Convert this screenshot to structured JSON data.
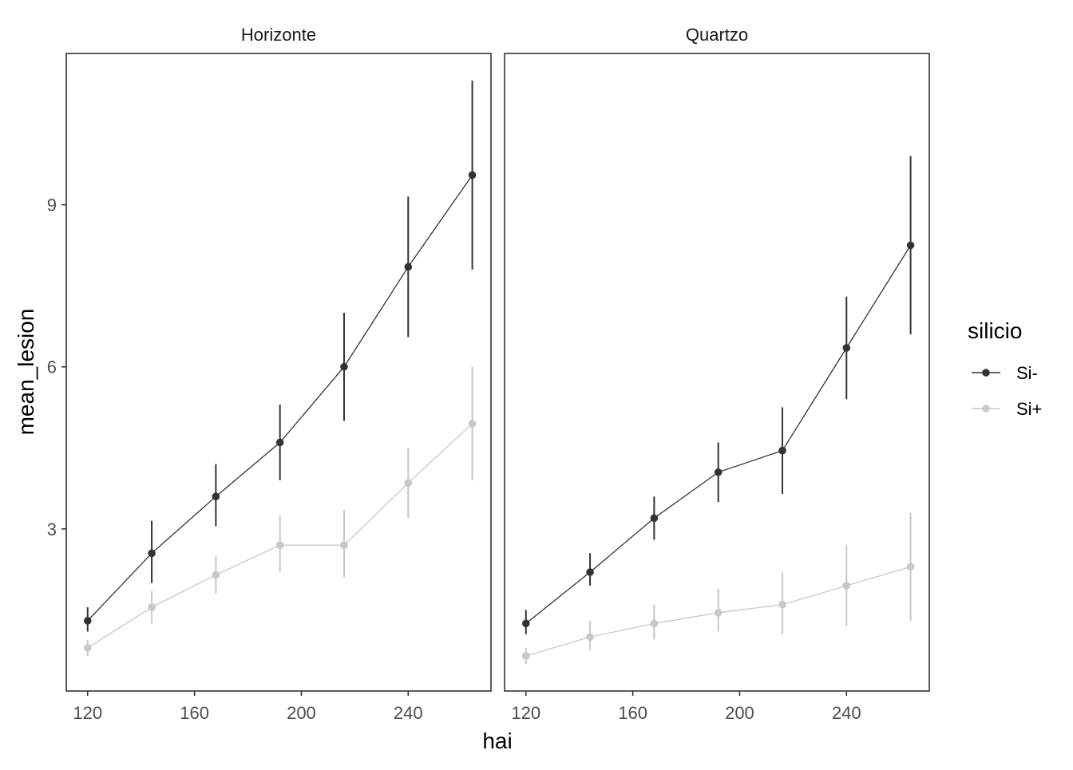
{
  "chart_data": {
    "type": "line",
    "xlabel": "hai",
    "ylabel": "mean_lesion",
    "xlim": [
      112,
      271
    ],
    "ylim": [
      0,
      11.8
    ],
    "x_ticks": [
      120,
      160,
      200,
      240
    ],
    "y_ticks": [
      3,
      6,
      9
    ],
    "grid": false,
    "legend": {
      "title": "silicio",
      "position": "right",
      "entries": [
        {
          "label": "Si-",
          "color": "#333333"
        },
        {
          "label": "Si+",
          "color": "#c8c8c8"
        }
      ]
    },
    "panels": [
      {
        "title": "Horizonte",
        "x": [
          120,
          144,
          168,
          192,
          216,
          240,
          264
        ],
        "series": [
          {
            "name": "Si-",
            "color": "#333333",
            "values": [
              1.3,
              2.55,
              3.6,
              4.6,
              6.0,
              7.85,
              9.55
            ],
            "lower": [
              1.1,
              2.0,
              3.05,
              3.9,
              5.0,
              6.55,
              7.8
            ],
            "upper": [
              1.55,
              3.15,
              4.2,
              5.3,
              7.0,
              9.15,
              11.3
            ]
          },
          {
            "name": "Si+",
            "color": "#c8c8c8",
            "values": [
              0.8,
              1.55,
              2.15,
              2.7,
              2.7,
              3.85,
              4.95
            ],
            "lower": [
              0.65,
              1.25,
              1.8,
              2.2,
              2.1,
              3.2,
              3.9
            ],
            "upper": [
              0.95,
              1.85,
              2.5,
              3.25,
              3.35,
              4.5,
              6.0
            ]
          }
        ]
      },
      {
        "title": "Quartzo",
        "x": [
          120,
          144,
          168,
          192,
          216,
          240,
          264
        ],
        "series": [
          {
            "name": "Si-",
            "color": "#333333",
            "values": [
              1.25,
              2.2,
              3.2,
              4.05,
              4.45,
              6.35,
              8.25
            ],
            "lower": [
              1.05,
              1.95,
              2.8,
              3.5,
              3.65,
              5.4,
              6.6
            ],
            "upper": [
              1.5,
              2.55,
              3.6,
              4.6,
              5.25,
              7.3,
              9.9
            ]
          },
          {
            "name": "Si+",
            "color": "#c8c8c8",
            "values": [
              0.65,
              1.0,
              1.25,
              1.45,
              1.6,
              1.95,
              2.3
            ],
            "lower": [
              0.5,
              0.75,
              0.95,
              1.1,
              1.05,
              1.2,
              1.3
            ],
            "upper": [
              0.8,
              1.3,
              1.6,
              1.9,
              2.2,
              2.7,
              3.3
            ]
          }
        ]
      }
    ]
  }
}
